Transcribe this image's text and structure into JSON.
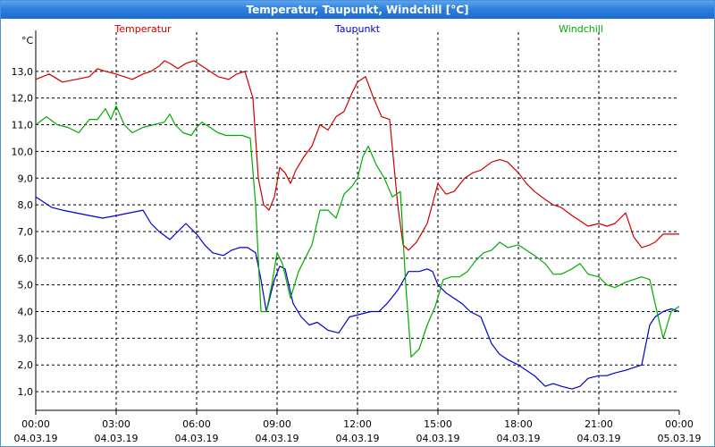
{
  "window": {
    "title": "Temperatur, Taupunkt, Windchill [°C]"
  },
  "chart_data": {
    "type": "line",
    "title": "Temperatur, Taupunkt, Windchill [°C]",
    "ylabel": "°C",
    "ylim": [
      0.3,
      14.2
    ],
    "yticks": [
      "1,0",
      "2,0",
      "3,0",
      "4,0",
      "5,0",
      "6,0",
      "7,0",
      "8,0",
      "9,0",
      "10,0",
      "11,0",
      "12,0",
      "13,0"
    ],
    "xlim": [
      0,
      24
    ],
    "xticks": [
      {
        "time": "00:00",
        "date": "04.03.19"
      },
      {
        "time": "03:00",
        "date": "04.03.19"
      },
      {
        "time": "06:00",
        "date": "04.03.19"
      },
      {
        "time": "09:00",
        "date": "04.03.19"
      },
      {
        "time": "12:00",
        "date": "04.03.19"
      },
      {
        "time": "15:00",
        "date": "04.03.19"
      },
      {
        "time": "18:00",
        "date": "04.03.19"
      },
      {
        "time": "21:00",
        "date": "04.03.19"
      },
      {
        "time": "00:00",
        "date": "05.03.19"
      }
    ],
    "grid": true,
    "series": [
      {
        "name": "Temperatur",
        "color": "#cc0000",
        "x": [
          0,
          0.5,
          1,
          1.5,
          2,
          2.3,
          2.6,
          3,
          3.3,
          3.6,
          4,
          4.3,
          4.6,
          4.8,
          5,
          5.3,
          5.6,
          5.9,
          6.2,
          6.5,
          6.8,
          7.2,
          7.5,
          7.8,
          8.1,
          8.3,
          8.5,
          8.7,
          8.9,
          9.1,
          9.3,
          9.5,
          9.7,
          10,
          10.3,
          10.6,
          10.9,
          11.2,
          11.5,
          11.8,
          12,
          12.3,
          12.6,
          12.9,
          13.2,
          13.5,
          13.7,
          13.9,
          14.2,
          14.6,
          15,
          15.3,
          15.6,
          16,
          16.3,
          16.6,
          17,
          17.3,
          17.6,
          18,
          18.3,
          18.6,
          19,
          19.3,
          19.6,
          20,
          20.3,
          20.6,
          21,
          21.3,
          21.6,
          22,
          22.3,
          22.6,
          22.9,
          23.1,
          23.4,
          23.7,
          24
        ],
        "values": [
          12.7,
          12.9,
          12.6,
          12.7,
          12.8,
          13.1,
          13.0,
          12.9,
          12.8,
          12.7,
          12.9,
          13.0,
          13.2,
          13.4,
          13.3,
          13.1,
          13.3,
          13.4,
          13.2,
          13.0,
          12.8,
          12.7,
          12.9,
          13.0,
          12.0,
          9.0,
          8.0,
          7.8,
          8.3,
          9.4,
          9.2,
          8.8,
          9.3,
          9.8,
          10.2,
          11.0,
          10.8,
          11.3,
          11.5,
          12.2,
          12.6,
          12.8,
          12.0,
          11.3,
          11.2,
          8.0,
          6.5,
          6.3,
          6.6,
          7.3,
          8.8,
          8.4,
          8.5,
          9.0,
          9.2,
          9.3,
          9.6,
          9.7,
          9.6,
          9.2,
          8.8,
          8.5,
          8.2,
          8.0,
          7.9,
          7.6,
          7.4,
          7.2,
          7.3,
          7.2,
          7.3,
          7.7,
          6.8,
          6.4,
          6.5,
          6.6,
          6.9,
          6.9,
          6.9
        ]
      },
      {
        "name": "Taupunkt",
        "color": "#0000cc",
        "x": [
          0,
          0.3,
          0.6,
          1,
          1.5,
          2,
          2.5,
          3,
          3.5,
          4,
          4.3,
          4.6,
          5,
          5.3,
          5.6,
          6,
          6.3,
          6.6,
          7,
          7.3,
          7.6,
          7.9,
          8.2,
          8.4,
          8.6,
          8.9,
          9.1,
          9.3,
          9.6,
          9.9,
          10.2,
          10.5,
          10.9,
          11.3,
          11.7,
          12.1,
          12.5,
          12.8,
          13.1,
          13.5,
          13.9,
          14.3,
          14.6,
          14.8,
          15,
          15.3,
          15.6,
          15.9,
          16.2,
          16.6,
          17,
          17.3,
          17.6,
          18,
          18.3,
          18.6,
          19,
          19.3,
          19.6,
          20,
          20.3,
          20.6,
          21,
          21.3,
          21.6,
          22,
          22.3,
          22.6,
          22.9,
          23.1,
          23.4,
          23.7,
          24
        ],
        "values": [
          8.3,
          8.1,
          7.9,
          7.8,
          7.7,
          7.6,
          7.5,
          7.6,
          7.7,
          7.8,
          7.3,
          7.0,
          6.7,
          7.0,
          7.3,
          6.9,
          6.5,
          6.2,
          6.1,
          6.3,
          6.4,
          6.4,
          6.2,
          5.2,
          4.0,
          5.2,
          5.7,
          5.6,
          4.3,
          3.8,
          3.5,
          3.6,
          3.3,
          3.2,
          3.8,
          3.9,
          4.0,
          4.0,
          4.3,
          4.8,
          5.5,
          5.5,
          5.6,
          5.5,
          5.0,
          4.7,
          4.5,
          4.3,
          4.0,
          3.8,
          2.8,
          2.4,
          2.2,
          2.0,
          1.8,
          1.6,
          1.2,
          1.3,
          1.2,
          1.1,
          1.2,
          1.5,
          1.6,
          1.6,
          1.7,
          1.8,
          1.9,
          2.0,
          3.5,
          3.8,
          4.0,
          4.1,
          4.0
        ]
      },
      {
        "name": "Windchill",
        "color": "#00aa00",
        "x": [
          0,
          0.4,
          0.8,
          1.2,
          1.6,
          2,
          2.3,
          2.6,
          2.8,
          3,
          3.3,
          3.6,
          4,
          4.4,
          4.8,
          5,
          5.2,
          5.5,
          5.8,
          6,
          6.2,
          6.5,
          6.8,
          7.1,
          7.4,
          7.7,
          8,
          8.2,
          8.4,
          8.6,
          8.8,
          9,
          9.2,
          9.5,
          9.8,
          10,
          10.3,
          10.6,
          10.9,
          11.2,
          11.5,
          11.8,
          12,
          12.2,
          12.4,
          12.7,
          13,
          13.3,
          13.6,
          13.8,
          14,
          14.3,
          14.6,
          14.9,
          15.2,
          15.5,
          15.8,
          16.1,
          16.4,
          16.7,
          17,
          17.3,
          17.6,
          18,
          18.3,
          18.6,
          19,
          19.3,
          19.6,
          20,
          20.3,
          20.6,
          21,
          21.3,
          21.6,
          22,
          22.3,
          22.6,
          22.9,
          23.1,
          23.4,
          23.7,
          24
        ],
        "values": [
          11.0,
          11.3,
          11.0,
          10.9,
          10.7,
          11.2,
          11.2,
          11.6,
          11.2,
          11.7,
          11.0,
          10.7,
          10.9,
          11.0,
          11.1,
          11.4,
          11.0,
          10.7,
          10.6,
          10.9,
          11.1,
          10.9,
          10.7,
          10.6,
          10.6,
          10.6,
          10.5,
          8.0,
          4.0,
          4.0,
          5.0,
          6.2,
          5.8,
          4.5,
          5.5,
          5.9,
          6.5,
          7.8,
          7.8,
          7.5,
          8.4,
          8.7,
          9.0,
          9.8,
          10.2,
          9.5,
          9.0,
          8.3,
          8.5,
          5.0,
          2.3,
          2.6,
          3.5,
          4.2,
          5.2,
          5.3,
          5.3,
          5.5,
          5.9,
          6.2,
          6.3,
          6.6,
          6.4,
          6.5,
          6.3,
          6.1,
          5.8,
          5.4,
          5.4,
          5.6,
          5.8,
          5.4,
          5.3,
          5.0,
          4.9,
          5.1,
          5.2,
          5.3,
          5.2,
          4.3,
          3.0,
          4.0,
          4.2
        ]
      }
    ]
  }
}
